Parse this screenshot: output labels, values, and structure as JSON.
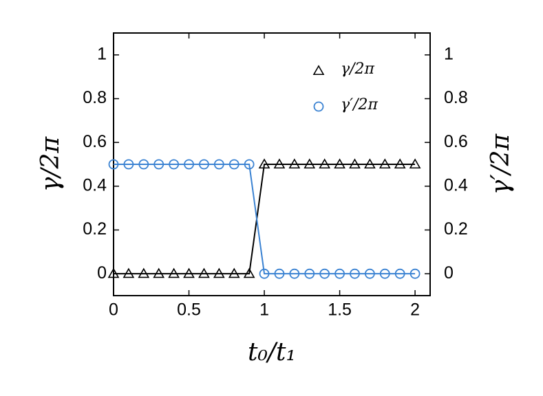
{
  "chart_data": {
    "type": "line",
    "xlabel": "t₀/t₁",
    "ylabel": "γ/2π",
    "y2label": "γ′/2π",
    "x": [
      0,
      0.1,
      0.2,
      0.3,
      0.4,
      0.5,
      0.6,
      0.7,
      0.8,
      0.9,
      1,
      1.1,
      1.2,
      1.3,
      1.4,
      1.5,
      1.6,
      1.7,
      1.8,
      1.9,
      2
    ],
    "series": [
      {
        "name": "γ/2π",
        "color": "#000000",
        "marker": "triangle",
        "values": [
          0,
          0,
          0,
          0,
          0,
          0,
          0,
          0,
          0,
          0,
          0.5,
          0.5,
          0.5,
          0.5,
          0.5,
          0.5,
          0.5,
          0.5,
          0.5,
          0.5,
          0.5
        ]
      },
      {
        "name": "γ′/2π",
        "color": "#3a82d2",
        "marker": "circle",
        "axis": "y2",
        "values": [
          0.5,
          0.5,
          0.5,
          0.5,
          0.5,
          0.5,
          0.5,
          0.5,
          0.5,
          0.5,
          0,
          0,
          0,
          0,
          0,
          0,
          0,
          0,
          0,
          0,
          0
        ]
      }
    ],
    "xlim": [
      0,
      2.1
    ],
    "xticks": [
      0,
      0.5,
      1,
      1.5,
      2
    ],
    "ylim": [
      -0.1,
      1.1
    ],
    "yticks": [
      0,
      0.2,
      0.4,
      0.6,
      0.8,
      1
    ],
    "y2lim": [
      -0.1,
      1.1
    ],
    "y2ticks": [
      0,
      0.2,
      0.4,
      0.6,
      0.8,
      1
    ],
    "legend": "upper right"
  }
}
